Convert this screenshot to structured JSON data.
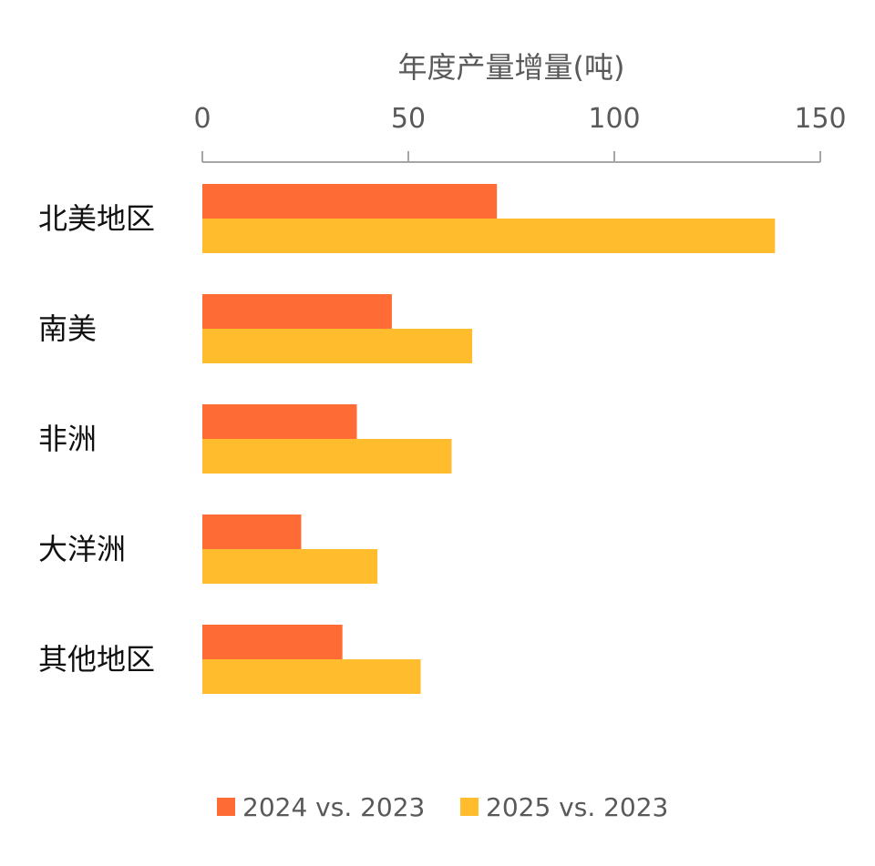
{
  "chart_data": {
    "type": "bar",
    "orientation": "horizontal",
    "title": "",
    "xlabel": "年度产量增量(吨)",
    "ylabel": "",
    "xlim": [
      0,
      150
    ],
    "x_ticks": [
      "0",
      "50",
      "100",
      "150"
    ],
    "x_tick_values": [
      0,
      50,
      100,
      150
    ],
    "axis_position": "top",
    "categories": [
      "北美地区",
      "南美",
      "非洲",
      "大洋洲",
      "其他地区"
    ],
    "series": [
      {
        "name": "2024 vs. 2023",
        "color": "#FF6B35",
        "values": [
          71.5,
          46,
          37.5,
          24,
          34
        ]
      },
      {
        "name": "2025 vs. 2023",
        "color": "#FFBC2D",
        "values": [
          139,
          65.5,
          60.5,
          42.5,
          53
        ]
      }
    ],
    "legend_position": "bottom",
    "grid": false
  }
}
